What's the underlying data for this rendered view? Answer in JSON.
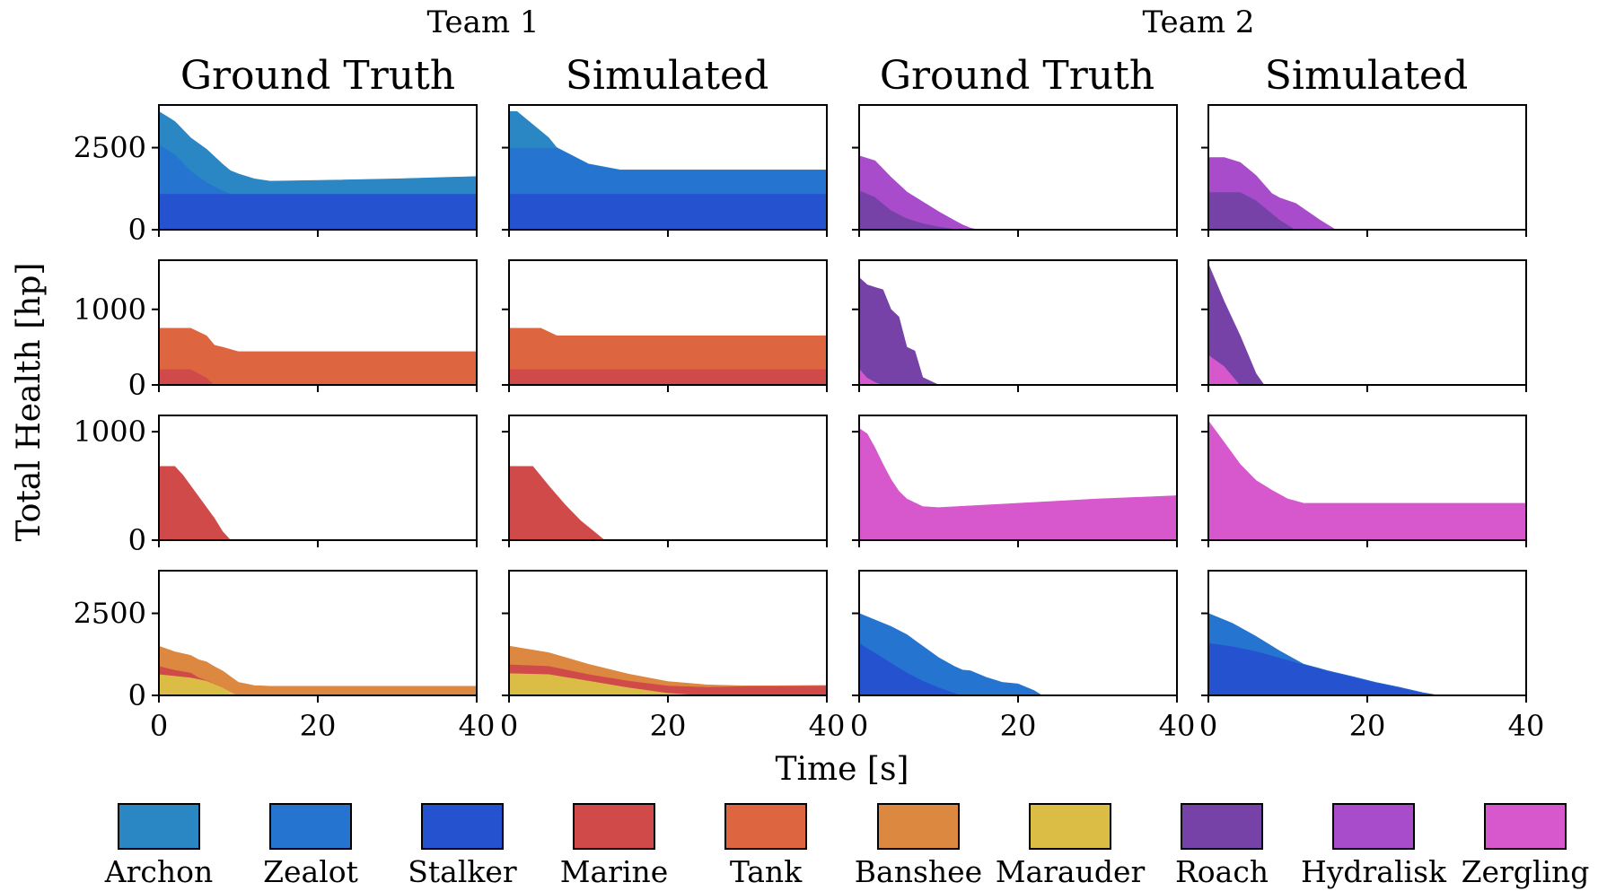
{
  "figure": {
    "team_headers": [
      "Team 1",
      "Team 2"
    ],
    "column_titles": [
      "Ground Truth",
      "Simulated",
      "Ground Truth",
      "Simulated"
    ],
    "xlabel": "Time [s]",
    "ylabel": "Total Health [hp]"
  },
  "legend": [
    {
      "name": "Archon",
      "color": "#2b86c4"
    },
    {
      "name": "Zealot",
      "color": "#2474d0"
    },
    {
      "name": "Stalker",
      "color": "#2553d0"
    },
    {
      "name": "Marine",
      "color": "#d14a4a"
    },
    {
      "name": "Tank",
      "color": "#dd6640"
    },
    {
      "name": "Banshee",
      "color": "#dd8840"
    },
    {
      "name": "Marauder",
      "color": "#dbbd45"
    },
    {
      "name": "Roach",
      "color": "#7642a8"
    },
    {
      "name": "Hydralisk",
      "color": "#a84ccc"
    },
    {
      "name": "Zergling",
      "color": "#d658cc"
    }
  ],
  "chart_data": [
    {
      "type": "area",
      "row": 1,
      "col": 1,
      "team": "Team 1",
      "title": "Ground Truth",
      "xlim": [
        0,
        40
      ],
      "ylim": [
        0,
        3800
      ],
      "yticks": [
        0,
        2500
      ],
      "xticks": [
        0,
        20,
        40
      ],
      "series": [
        {
          "name": "Stalker",
          "color": "#2553d0",
          "x": [
            0,
            40
          ],
          "y": [
            1100,
            1100
          ]
        },
        {
          "name": "Zealot",
          "color": "#2474d0",
          "x": [
            0,
            2,
            4,
            6,
            8,
            9,
            40
          ],
          "y": [
            1500,
            1200,
            700,
            350,
            100,
            0,
            0
          ]
        },
        {
          "name": "Archon",
          "color": "#2b86c4",
          "x": [
            0,
            1,
            2,
            3,
            4,
            5,
            6,
            8,
            10,
            12,
            14,
            20,
            30,
            40
          ],
          "y": [
            1000,
            1000,
            1000,
            1000,
            1000,
            1000,
            1000,
            800,
            600,
            450,
            380,
            400,
            450,
            520
          ]
        }
      ]
    },
    {
      "type": "area",
      "row": 1,
      "col": 2,
      "team": "Team 1",
      "title": "Simulated",
      "xlim": [
        0,
        40
      ],
      "ylim": [
        0,
        3800
      ],
      "yticks": [
        0,
        2500
      ],
      "xticks": [
        0,
        20,
        40
      ],
      "series": [
        {
          "name": "Stalker",
          "color": "#2553d0",
          "x": [
            0,
            40
          ],
          "y": [
            1100,
            1100
          ]
        },
        {
          "name": "Zealot",
          "color": "#2474d0",
          "x": [
            0,
            6,
            10,
            14,
            40
          ],
          "y": [
            1400,
            1400,
            900,
            720,
            720
          ]
        },
        {
          "name": "Archon",
          "color": "#2b86c4",
          "x": [
            0,
            1,
            3,
            5,
            6,
            40
          ],
          "y": [
            1100,
            1100,
            700,
            300,
            0,
            0
          ]
        }
      ]
    },
    {
      "type": "area",
      "row": 1,
      "col": 3,
      "team": "Team 2",
      "title": "Ground Truth",
      "xlim": [
        0,
        40
      ],
      "ylim": [
        0,
        3800
      ],
      "yticks": [
        0,
        2500
      ],
      "xticks": [
        0,
        20,
        40
      ],
      "series": [
        {
          "name": "Roach",
          "color": "#7642a8",
          "x": [
            0,
            2,
            4,
            6,
            8,
            10,
            12,
            13,
            40
          ],
          "y": [
            1200,
            1000,
            600,
            350,
            200,
            100,
            30,
            0,
            0
          ]
        },
        {
          "name": "Hydralisk",
          "color": "#a84ccc",
          "x": [
            0,
            2,
            4,
            6,
            8,
            10,
            12,
            14,
            15,
            40
          ],
          "y": [
            1050,
            1100,
            1000,
            800,
            650,
            450,
            250,
            50,
            0,
            0
          ]
        }
      ]
    },
    {
      "type": "area",
      "row": 1,
      "col": 4,
      "team": "Team 2",
      "title": "Simulated",
      "xlim": [
        0,
        40
      ],
      "ylim": [
        0,
        3800
      ],
      "yticks": [
        0,
        2500
      ],
      "xticks": [
        0,
        20,
        40
      ],
      "series": [
        {
          "name": "Roach",
          "color": "#7642a8",
          "x": [
            0,
            4,
            6,
            9,
            11,
            40
          ],
          "y": [
            1150,
            1150,
            900,
            300,
            0,
            0
          ]
        },
        {
          "name": "Hydralisk",
          "color": "#a84ccc",
          "x": [
            0,
            2,
            4,
            8,
            11,
            14,
            16,
            40
          ],
          "y": [
            1050,
            1050,
            900,
            600,
            800,
            300,
            0,
            0
          ]
        }
      ]
    },
    {
      "type": "area",
      "row": 2,
      "col": 1,
      "team": "Team 1",
      "title": "Ground Truth",
      "xlim": [
        0,
        40
      ],
      "ylim": [
        0,
        1650
      ],
      "yticks": [
        0,
        1000
      ],
      "xticks": [
        0,
        20,
        40
      ],
      "series": [
        {
          "name": "Marine",
          "color": "#d14a4a",
          "x": [
            0,
            4,
            6,
            7,
            40
          ],
          "y": [
            210,
            210,
            100,
            0,
            0
          ]
        },
        {
          "name": "Tank",
          "color": "#dd6640",
          "x": [
            0,
            4,
            6,
            8,
            10,
            40
          ],
          "y": [
            540,
            540,
            550,
            500,
            440,
            440
          ]
        }
      ]
    },
    {
      "type": "area",
      "row": 2,
      "col": 2,
      "team": "Team 1",
      "title": "Simulated",
      "xlim": [
        0,
        40
      ],
      "ylim": [
        0,
        1650
      ],
      "yticks": [
        0,
        1000
      ],
      "xticks": [
        0,
        20,
        40
      ],
      "series": [
        {
          "name": "Marine",
          "color": "#d14a4a",
          "x": [
            0,
            40
          ],
          "y": [
            210,
            210
          ]
        },
        {
          "name": "Tank",
          "color": "#dd6640",
          "x": [
            0,
            4,
            6,
            40
          ],
          "y": [
            540,
            540,
            440,
            440
          ]
        }
      ]
    },
    {
      "type": "area",
      "row": 2,
      "col": 3,
      "team": "Team 2",
      "title": "Ground Truth",
      "xlim": [
        0,
        40
      ],
      "ylim": [
        0,
        1650
      ],
      "yticks": [
        0,
        1000
      ],
      "xticks": [
        0,
        20,
        40
      ],
      "series": [
        {
          "name": "Zergling",
          "color": "#d658cc",
          "x": [
            0,
            1,
            2,
            3,
            40
          ],
          "y": [
            220,
            100,
            40,
            0,
            0
          ]
        },
        {
          "name": "Roach",
          "color": "#7642a8",
          "x": [
            0,
            2,
            3,
            4,
            5,
            6,
            7,
            8,
            10,
            40
          ],
          "y": [
            1200,
            1250,
            1260,
            1000,
            900,
            500,
            450,
            100,
            0,
            0
          ]
        }
      ]
    },
    {
      "type": "area",
      "row": 2,
      "col": 4,
      "team": "Team 2",
      "title": "Simulated",
      "xlim": [
        0,
        40
      ],
      "ylim": [
        0,
        1650
      ],
      "yticks": [
        0,
        1000
      ],
      "xticks": [
        0,
        20,
        40
      ],
      "series": [
        {
          "name": "Zergling",
          "color": "#d658cc",
          "x": [
            0,
            2,
            4,
            40
          ],
          "y": [
            400,
            250,
            0,
            0
          ]
        },
        {
          "name": "Roach",
          "color": "#7642a8",
          "x": [
            0,
            2,
            4,
            6,
            7,
            40
          ],
          "y": [
            1200,
            850,
            650,
            150,
            0,
            0
          ]
        }
      ]
    },
    {
      "type": "area",
      "row": 3,
      "col": 1,
      "team": "Team 1",
      "title": "Ground Truth",
      "xlim": [
        0,
        40
      ],
      "ylim": [
        0,
        1150
      ],
      "yticks": [
        0,
        1000
      ],
      "xticks": [
        0,
        20,
        40
      ],
      "series": [
        {
          "name": "Marine",
          "color": "#d14a4a",
          "x": [
            0,
            2,
            3,
            5,
            7,
            8,
            9,
            40
          ],
          "y": [
            680,
            680,
            600,
            400,
            200,
            80,
            0,
            0
          ]
        }
      ]
    },
    {
      "type": "area",
      "row": 3,
      "col": 2,
      "team": "Team 1",
      "title": "Simulated",
      "xlim": [
        0,
        40
      ],
      "ylim": [
        0,
        1150
      ],
      "yticks": [
        0,
        1000
      ],
      "xticks": [
        0,
        20,
        40
      ],
      "series": [
        {
          "name": "Marine",
          "color": "#d14a4a",
          "x": [
            0,
            3,
            5,
            7,
            9,
            11,
            12,
            40
          ],
          "y": [
            680,
            680,
            500,
            330,
            180,
            60,
            0,
            0
          ]
        }
      ]
    },
    {
      "type": "area",
      "row": 3,
      "col": 3,
      "team": "Team 2",
      "title": "Ground Truth",
      "xlim": [
        0,
        40
      ],
      "ylim": [
        0,
        1150
      ],
      "yticks": [
        0,
        1000
      ],
      "xticks": [
        0,
        20,
        40
      ],
      "series": [
        {
          "name": "Zergling",
          "color": "#d658cc",
          "x": [
            0,
            1,
            2,
            3,
            4,
            5,
            6,
            8,
            10,
            20,
            30,
            40
          ],
          "y": [
            1030,
            980,
            850,
            700,
            560,
            450,
            380,
            310,
            300,
            340,
            380,
            410
          ]
        }
      ]
    },
    {
      "type": "area",
      "row": 3,
      "col": 4,
      "team": "Team 2",
      "title": "Simulated",
      "xlim": [
        0,
        40
      ],
      "ylim": [
        0,
        1150
      ],
      "yticks": [
        0,
        1000
      ],
      "xticks": [
        0,
        20,
        40
      ],
      "series": [
        {
          "name": "Zergling",
          "color": "#d658cc",
          "x": [
            0,
            2,
            4,
            6,
            8,
            10,
            12,
            40
          ],
          "y": [
            1100,
            900,
            700,
            550,
            460,
            380,
            340,
            340
          ]
        }
      ]
    },
    {
      "type": "area",
      "row": 4,
      "col": 1,
      "team": "Team 1",
      "title": "Ground Truth",
      "xlim": [
        0,
        40
      ],
      "ylim": [
        0,
        3800
      ],
      "yticks": [
        0,
        2500
      ],
      "xticks": [
        0,
        20,
        40
      ],
      "series": [
        {
          "name": "Marauder",
          "color": "#dbbd45",
          "x": [
            0,
            2,
            4,
            6,
            8,
            10,
            40
          ],
          "y": [
            650,
            600,
            550,
            450,
            250,
            0,
            0
          ]
        },
        {
          "name": "Marine",
          "color": "#d14a4a",
          "x": [
            0,
            2,
            4,
            5,
            6,
            7,
            40
          ],
          "y": [
            250,
            180,
            150,
            50,
            20,
            0,
            0
          ]
        },
        {
          "name": "Banshee",
          "color": "#dd8840",
          "x": [
            0,
            2,
            4,
            6,
            8,
            10,
            12,
            14,
            40
          ],
          "y": [
            600,
            550,
            520,
            550,
            500,
            400,
            300,
            280,
            280
          ]
        }
      ]
    },
    {
      "type": "area",
      "row": 4,
      "col": 2,
      "team": "Team 1",
      "title": "Simulated",
      "xlim": [
        0,
        40
      ],
      "ylim": [
        0,
        3800
      ],
      "yticks": [
        0,
        2500
      ],
      "xticks": [
        0,
        20,
        40
      ],
      "series": [
        {
          "name": "Marauder",
          "color": "#dbbd45",
          "x": [
            0,
            5,
            10,
            15,
            20,
            25,
            40
          ],
          "y": [
            680,
            650,
            450,
            250,
            80,
            0,
            0
          ]
        },
        {
          "name": "Marine",
          "color": "#d14a4a",
          "x": [
            0,
            5,
            10,
            15,
            20,
            25,
            30,
            40
          ],
          "y": [
            270,
            250,
            200,
            200,
            220,
            260,
            290,
            300
          ]
        },
        {
          "name": "Banshee",
          "color": "#dd8840",
          "x": [
            0,
            5,
            10,
            15,
            20,
            25,
            30,
            40
          ],
          "y": [
            550,
            400,
            300,
            200,
            120,
            60,
            0,
            0
          ]
        }
      ]
    },
    {
      "type": "area",
      "row": 4,
      "col": 3,
      "team": "Team 2",
      "title": "Ground Truth",
      "xlim": [
        0,
        40
      ],
      "ylim": [
        0,
        3800
      ],
      "yticks": [
        0,
        2500
      ],
      "xticks": [
        0,
        20,
        40
      ],
      "series": [
        {
          "name": "Stalker",
          "color": "#2553d0",
          "x": [
            0,
            2,
            4,
            6,
            8,
            10,
            12,
            13,
            40
          ],
          "y": [
            1600,
            1300,
            1000,
            700,
            450,
            250,
            80,
            0,
            0
          ]
        },
        {
          "name": "Zealot",
          "color": "#2474d0",
          "x": [
            0,
            2,
            4,
            6,
            8,
            10,
            12,
            14,
            16,
            18,
            20,
            22,
            23,
            40
          ],
          "y": [
            900,
            1000,
            1100,
            1150,
            1050,
            900,
            800,
            750,
            550,
            400,
            350,
            150,
            0,
            0
          ]
        }
      ]
    },
    {
      "type": "area",
      "row": 4,
      "col": 4,
      "team": "Team 2",
      "title": "Simulated",
      "xlim": [
        0,
        40
      ],
      "ylim": [
        0,
        3800
      ],
      "yticks": [
        0,
        2500
      ],
      "xticks": [
        0,
        20,
        40
      ],
      "series": [
        {
          "name": "Stalker",
          "color": "#2553d0",
          "x": [
            0,
            3,
            6,
            9,
            12,
            15,
            18,
            21,
            24,
            27,
            29,
            40
          ],
          "y": [
            1600,
            1500,
            1350,
            1150,
            950,
            750,
            580,
            400,
            250,
            80,
            0,
            0
          ]
        },
        {
          "name": "Zealot",
          "color": "#2474d0",
          "x": [
            0,
            3,
            6,
            9,
            12,
            14,
            40
          ],
          "y": [
            900,
            700,
            450,
            200,
            0,
            0,
            0
          ]
        }
      ]
    }
  ]
}
